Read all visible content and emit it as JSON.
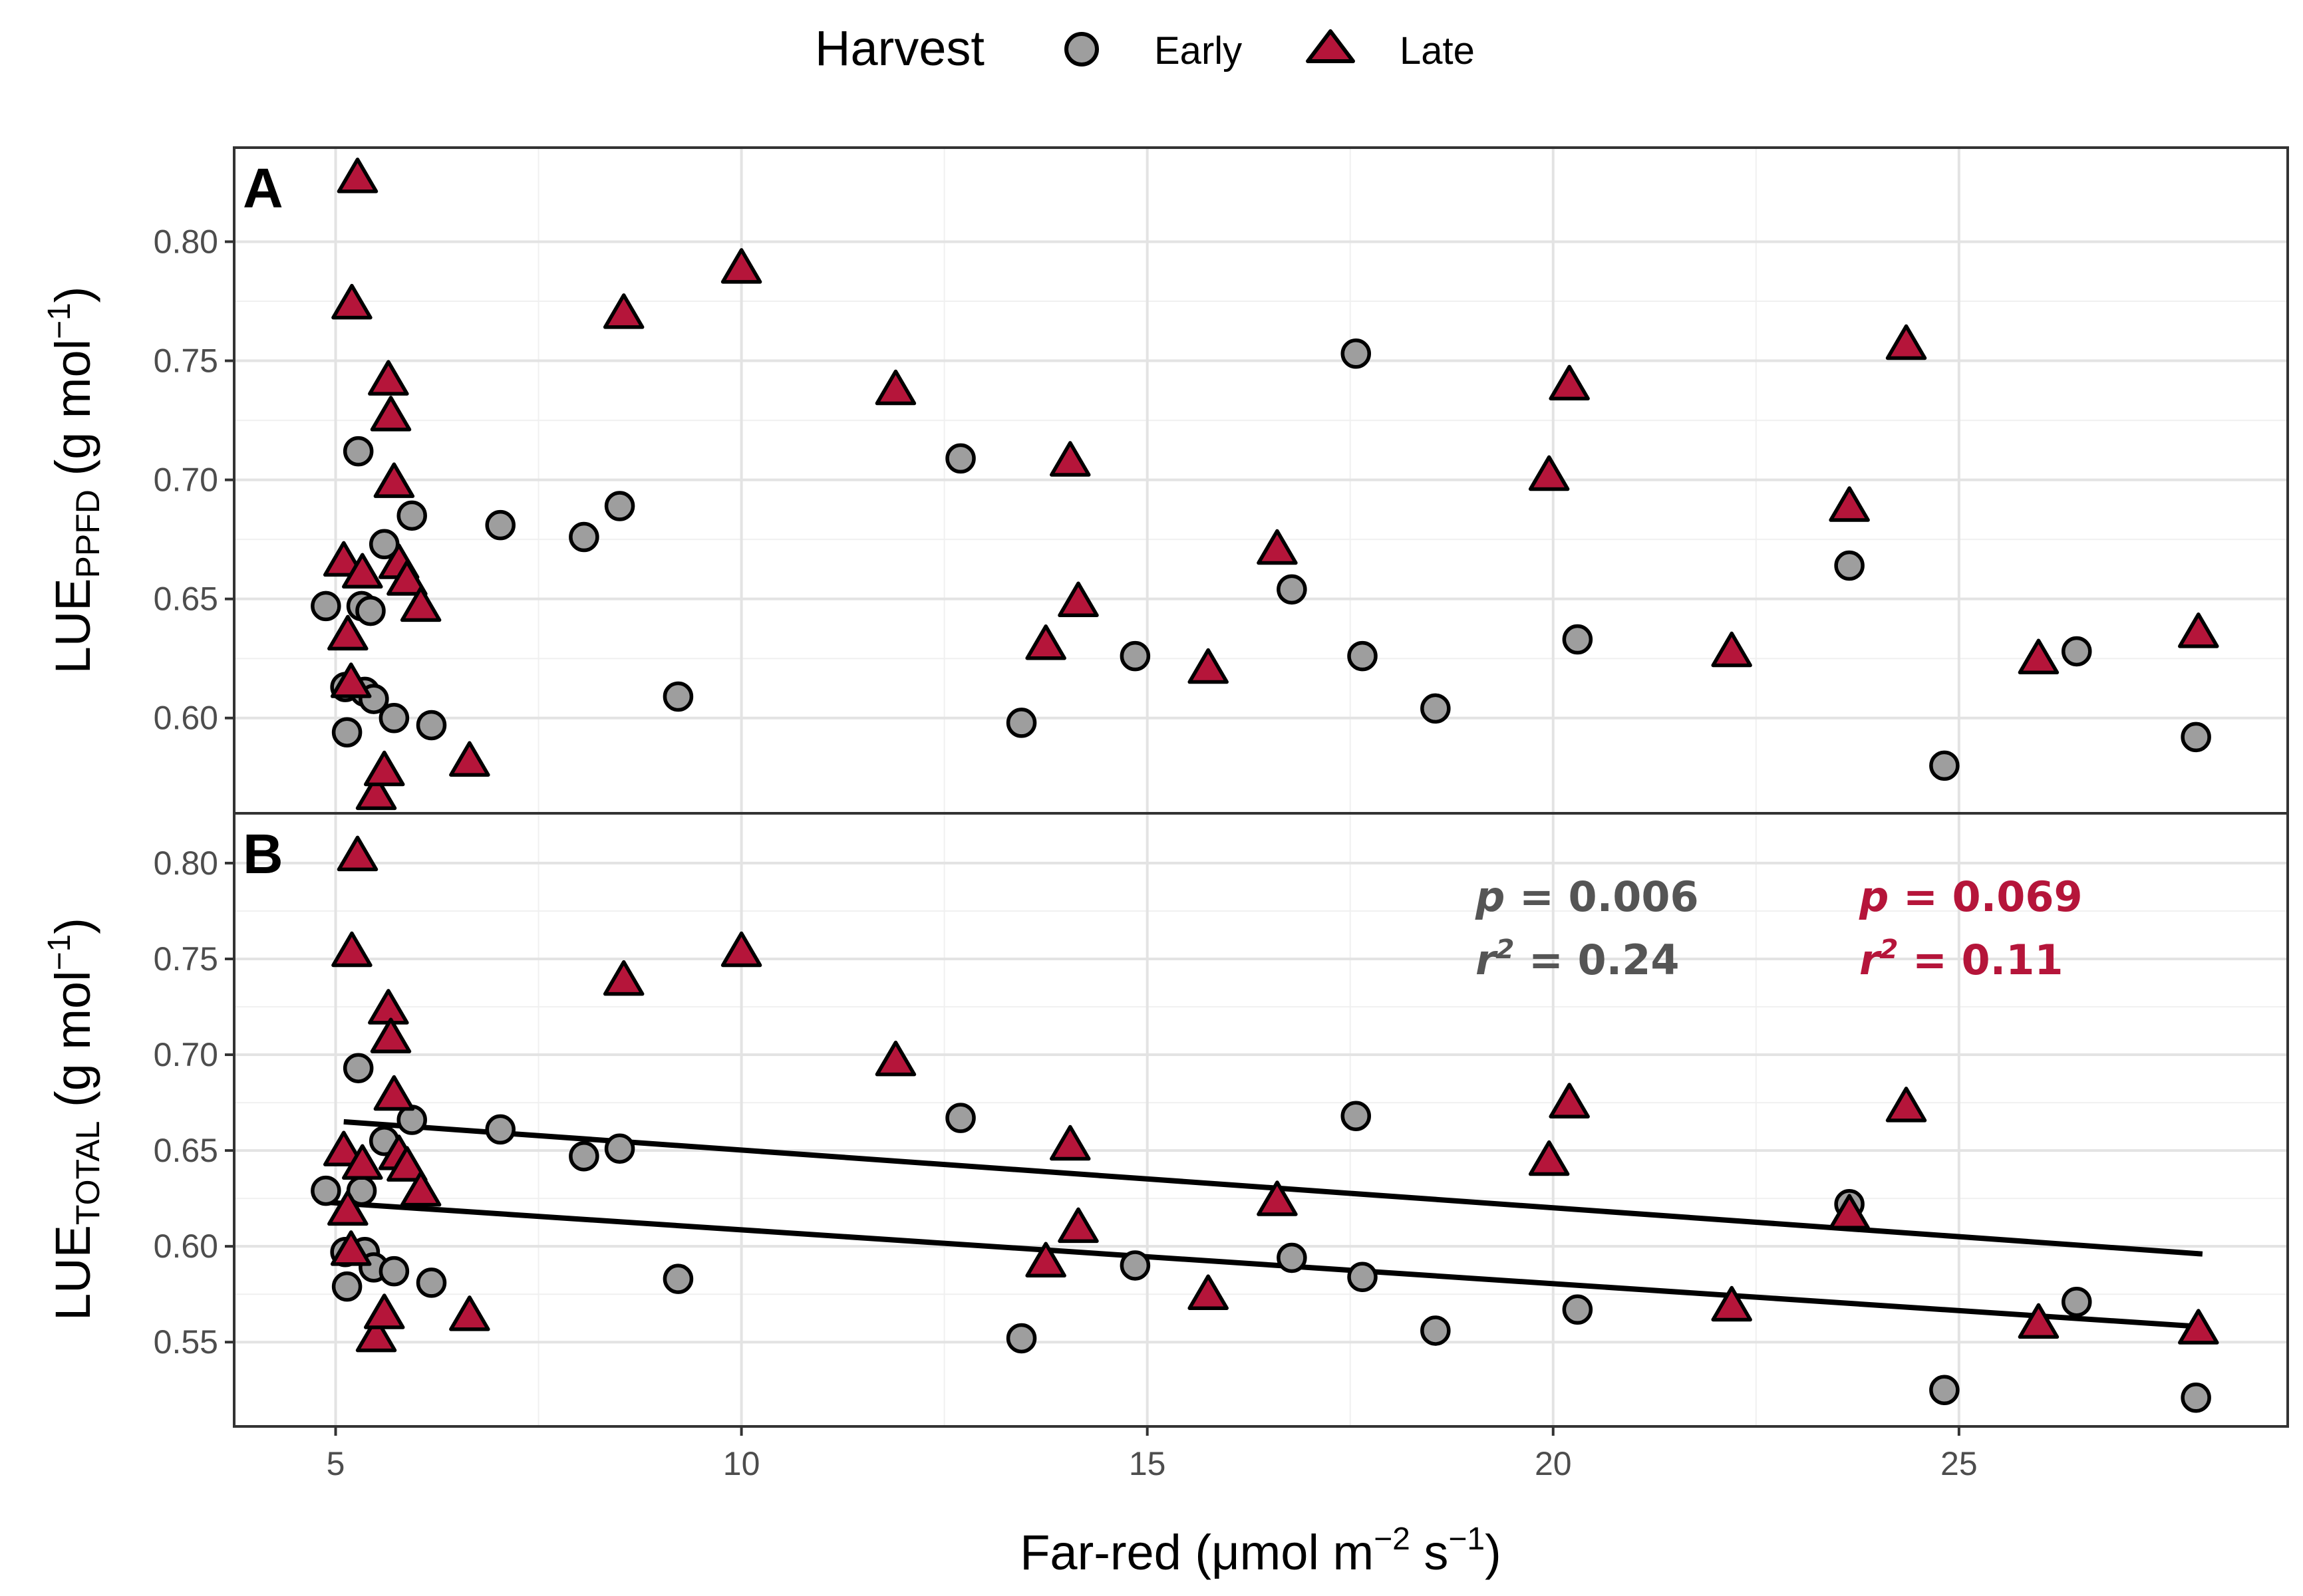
{
  "chart_data": {
    "type": "scatter",
    "legend": {
      "title": "Harvest",
      "position": "top",
      "entries": [
        {
          "label": "Early",
          "shape": "circle",
          "fill": "#9e9e9e"
        },
        {
          "label": "Late",
          "shape": "triangle",
          "fill": "#b5153a"
        }
      ]
    },
    "xlabel": {
      "main": "Far-red (μmol m",
      "sup1": "−2",
      "mid": " s",
      "sup2": "−1",
      "end": ")"
    },
    "xlim": [
      3.75,
      29.05
    ],
    "xticks": [
      5,
      10,
      15,
      20,
      25
    ],
    "panels": [
      {
        "label": "A",
        "ylabel": {
          "main": "LUE",
          "sub": "PPFD",
          "unit": " (g mol",
          "sup": "−1",
          "end": ")"
        },
        "ylim": [
          0.56,
          0.8395
        ],
        "yticks": [
          0.6,
          0.65,
          0.7,
          0.75,
          0.8
        ],
        "series": [
          {
            "name": "Early",
            "points": [
              [
                4.88,
                0.647
              ],
              [
                5.12,
                0.613
              ],
              [
                5.14,
                0.594
              ],
              [
                5.28,
                0.712
              ],
              [
                5.32,
                0.647
              ],
              [
                5.36,
                0.611
              ],
              [
                5.43,
                0.645
              ],
              [
                5.47,
                0.608
              ],
              [
                5.6,
                0.673
              ],
              [
                5.72,
                0.6
              ],
              [
                5.94,
                0.685
              ],
              [
                6.18,
                0.597
              ],
              [
                7.03,
                0.681
              ],
              [
                8.06,
                0.676
              ],
              [
                8.5,
                0.689
              ],
              [
                9.22,
                0.609
              ],
              [
                12.7,
                0.709
              ],
              [
                13.45,
                0.598
              ],
              [
                14.85,
                0.626
              ],
              [
                16.78,
                0.654
              ],
              [
                17.57,
                0.753
              ],
              [
                17.65,
                0.626
              ],
              [
                18.55,
                0.604
              ],
              [
                20.3,
                0.633
              ],
              [
                23.65,
                0.664
              ],
              [
                24.82,
                0.58
              ],
              [
                26.45,
                0.628
              ],
              [
                27.92,
                0.592
              ]
            ]
          },
          {
            "name": "Late",
            "points": [
              [
                5.1,
                0.666
              ],
              [
                5.15,
                0.635
              ],
              [
                5.19,
                0.615
              ],
              [
                5.2,
                0.774
              ],
              [
                5.27,
                0.827
              ],
              [
                5.33,
                0.661
              ],
              [
                5.5,
                0.568
              ],
              [
                5.6,
                0.578
              ],
              [
                5.65,
                0.742
              ],
              [
                5.68,
                0.727
              ],
              [
                5.72,
                0.699
              ],
              [
                5.78,
                0.665
              ],
              [
                5.88,
                0.658
              ],
              [
                6.05,
                0.647
              ],
              [
                6.65,
                0.582
              ],
              [
                8.55,
                0.77
              ],
              [
                10.0,
                0.789
              ],
              [
                11.9,
                0.738
              ],
              [
                13.75,
                0.631
              ],
              [
                14.05,
                0.708
              ],
              [
                14.15,
                0.649
              ],
              [
                15.75,
                0.621
              ],
              [
                16.6,
                0.671
              ],
              [
                19.95,
                0.702
              ],
              [
                20.2,
                0.74
              ],
              [
                22.2,
                0.628
              ],
              [
                23.65,
                0.689
              ],
              [
                24.35,
                0.757
              ],
              [
                25.98,
                0.625
              ],
              [
                27.95,
                0.636
              ]
            ]
          }
        ]
      },
      {
        "label": "B",
        "ylabel": {
          "main": "LUE",
          "sub": "TOTAL",
          "unit": " (g mol",
          "sup": "−1",
          "end": ")"
        },
        "ylim": [
          0.506,
          0.826
        ],
        "yticks": [
          0.55,
          0.6,
          0.65,
          0.7,
          0.75,
          0.8
        ],
        "series": [
          {
            "name": "Early",
            "points": [
              [
                4.88,
                0.629
              ],
              [
                5.12,
                0.597
              ],
              [
                5.14,
                0.579
              ],
              [
                5.28,
                0.693
              ],
              [
                5.32,
                0.629
              ],
              [
                5.36,
                0.597
              ],
              [
                5.47,
                0.589
              ],
              [
                5.6,
                0.655
              ],
              [
                5.72,
                0.587
              ],
              [
                5.94,
                0.666
              ],
              [
                6.18,
                0.581
              ],
              [
                7.03,
                0.661
              ],
              [
                8.06,
                0.647
              ],
              [
                8.5,
                0.651
              ],
              [
                9.22,
                0.583
              ],
              [
                12.7,
                0.667
              ],
              [
                13.45,
                0.552
              ],
              [
                14.85,
                0.59
              ],
              [
                16.78,
                0.594
              ],
              [
                17.57,
                0.668
              ],
              [
                17.65,
                0.584
              ],
              [
                18.55,
                0.556
              ],
              [
                20.3,
                0.567
              ],
              [
                23.65,
                0.622
              ],
              [
                24.82,
                0.525
              ],
              [
                26.45,
                0.571
              ],
              [
                27.92,
                0.521
              ]
            ]
          },
          {
            "name": "Late",
            "points": [
              [
                5.1,
                0.65
              ],
              [
                5.15,
                0.619
              ],
              [
                5.19,
                0.598
              ],
              [
                5.2,
                0.754
              ],
              [
                5.27,
                0.804
              ],
              [
                5.33,
                0.643
              ],
              [
                5.5,
                0.553
              ],
              [
                5.6,
                0.565
              ],
              [
                5.65,
                0.724
              ],
              [
                5.68,
                0.709
              ],
              [
                5.72,
                0.679
              ],
              [
                5.78,
                0.648
              ],
              [
                5.88,
                0.642
              ],
              [
                6.05,
                0.629
              ],
              [
                6.65,
                0.564
              ],
              [
                8.55,
                0.739
              ],
              [
                10.0,
                0.754
              ],
              [
                11.9,
                0.697
              ],
              [
                13.75,
                0.592
              ],
              [
                14.05,
                0.653
              ],
              [
                14.15,
                0.61
              ],
              [
                15.75,
                0.575
              ],
              [
                16.6,
                0.624
              ],
              [
                19.95,
                0.645
              ],
              [
                20.2,
                0.675
              ],
              [
                22.2,
                0.569
              ],
              [
                23.65,
                0.617
              ],
              [
                24.35,
                0.673
              ],
              [
                25.98,
                0.56
              ],
              [
                27.95,
                0.557
              ]
            ]
          }
        ],
        "fits": [
          {
            "name": "Late fit",
            "x": [
              5.1,
              28.0
            ],
            "y": [
              0.665,
              0.596
            ]
          },
          {
            "name": "Early fit",
            "x": [
              4.88,
              28.0
            ],
            "y": [
              0.623,
              0.558
            ]
          }
        ],
        "stats": [
          {
            "name": "Early",
            "p_label": "p",
            "p_value": " = 0.006",
            "r_label": "r",
            "r_sup": "2",
            "r_value": " = 0.24",
            "color": "#555555"
          },
          {
            "name": "Late",
            "p_label": "p",
            "p_value": " = 0.069",
            "r_label": "r",
            "r_sup": "2",
            "r_value": " = 0.11",
            "color": "#b5153a"
          }
        ]
      }
    ]
  }
}
